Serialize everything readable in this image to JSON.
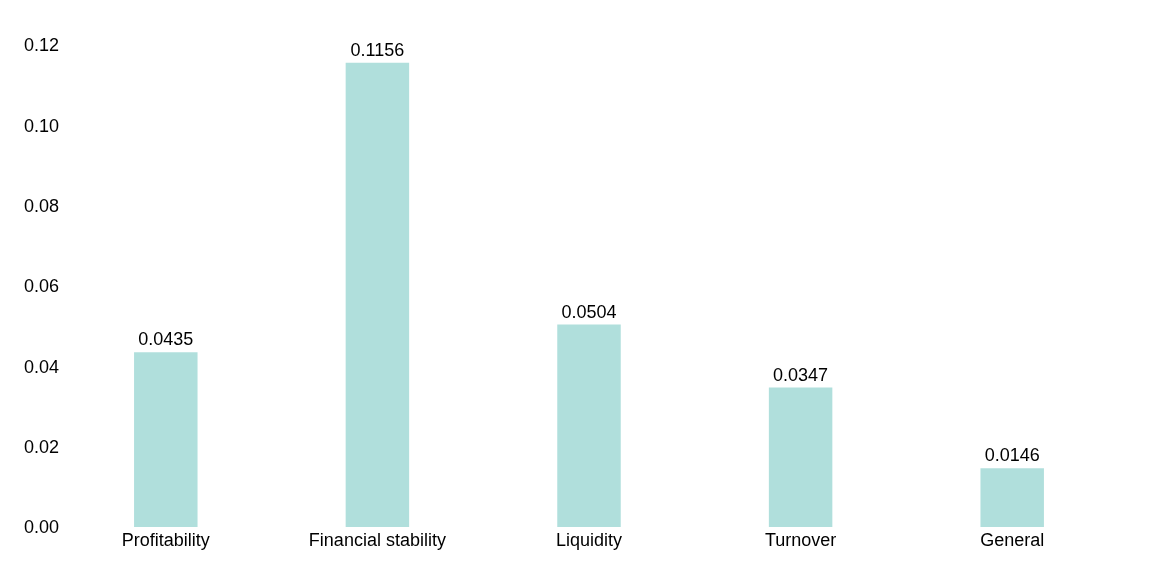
{
  "chart_data": {
    "type": "bar",
    "categories": [
      "Profitability",
      "Financial stability",
      "Liquidity",
      "Turnover",
      "General"
    ],
    "values": [
      0.0435,
      0.1156,
      0.0504,
      0.0347,
      0.0146
    ],
    "color": "#b0dfdc",
    "ylim": [
      0,
      0.12
    ],
    "yticks": [
      {
        "value": 0,
        "label": "0.00"
      },
      {
        "value": 0.02,
        "label": "0.02"
      },
      {
        "value": 0.04,
        "label": "0.04"
      },
      {
        "value": 0.06,
        "label": "0.06"
      },
      {
        "value": 0.08,
        "label": "0.08"
      },
      {
        "value": 0.1,
        "label": "0.10"
      },
      {
        "value": 0.12,
        "label": "0.12"
      }
    ],
    "data_labels": true,
    "legend": false
  }
}
